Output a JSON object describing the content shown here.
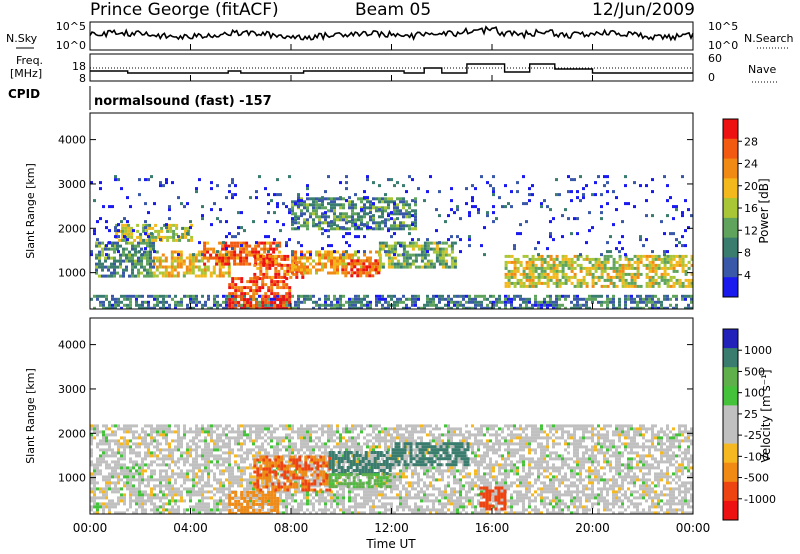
{
  "header": {
    "station": "Prince George (fitACF)",
    "beam": "Beam 05",
    "date": "12/Jun/2009"
  },
  "panels": {
    "nsky": {
      "left_label": "N.Sky",
      "right_label": "N.Search",
      "ticks_left": [
        "10^5",
        "10^0"
      ],
      "ticks_right": [
        "10^5",
        "10^0"
      ]
    },
    "freq": {
      "left_label_1": "Freq.",
      "left_label_2": "[MHz]",
      "right_label": "Nave",
      "ticks_left": [
        "18",
        "8"
      ],
      "ticks_right": [
        "60",
        "0"
      ]
    },
    "cpid": {
      "label": "CPID",
      "value": "normalsound (fast) -157"
    }
  },
  "colorbars": {
    "power": {
      "label": "Power [dB]",
      "ticks": [
        "28",
        "24",
        "20",
        "16",
        "12",
        "8",
        "4"
      ],
      "colors": [
        "#ee1111",
        "#f25a11",
        "#f08a14",
        "#f3b81c",
        "#a8c636",
        "#5fa35c",
        "#3a7d6f",
        "#3a58a8",
        "#1a1aee"
      ]
    },
    "velocity": {
      "label": "Velocity [m s⁻¹]",
      "ticks": [
        "1000",
        "500",
        "100",
        "25",
        "-25",
        "-100",
        "-500",
        "-1000"
      ],
      "colors": [
        "#2222bb",
        "#3a7d6f",
        "#5fb04a",
        "#44c33a",
        "#c0c0c0",
        "#c0c0c0",
        "#f5b820",
        "#f08a14",
        "#ee4411",
        "#ee1111"
      ]
    }
  },
  "chart_data": [
    {
      "type": "heatmap",
      "title": "Power",
      "ylabel": "Slant Range [km]",
      "xlabel": "Time UT",
      "x_ticks": [
        "00:00",
        "04:00",
        "08:00",
        "12:00",
        "16:00",
        "20:00",
        "00:00"
      ],
      "y_ticks": [
        "1000",
        "2000",
        "3000",
        "4000"
      ],
      "xlim_hours": [
        0,
        24
      ],
      "ylim_km": [
        180,
        4600
      ],
      "regions": [
        {
          "t0": 0.0,
          "t1": 24.0,
          "r0": 200,
          "r1": 500,
          "value": 10
        },
        {
          "t0": 0.2,
          "t1": 2.5,
          "r0": 900,
          "r1": 1700,
          "value": 12
        },
        {
          "t0": 1.0,
          "t1": 4.0,
          "r0": 1700,
          "r1": 2100,
          "value": 17
        },
        {
          "t0": 2.5,
          "t1": 5.5,
          "r0": 900,
          "r1": 1500,
          "value": 20
        },
        {
          "t0": 4.5,
          "t1": 7.5,
          "r0": 1200,
          "r1": 1700,
          "value": 26
        },
        {
          "t0": 5.5,
          "t1": 8.0,
          "r0": 200,
          "r1": 900,
          "value": 28
        },
        {
          "t0": 6.5,
          "t1": 8.5,
          "r0": 900,
          "r1": 1400,
          "value": 26
        },
        {
          "t0": 8.0,
          "t1": 11.5,
          "r0": 1000,
          "r1": 1500,
          "value": 22
        },
        {
          "t0": 10.0,
          "t1": 11.5,
          "r0": 900,
          "r1": 1300,
          "value": 27
        },
        {
          "t0": 11.5,
          "t1": 14.5,
          "r0": 1100,
          "r1": 1700,
          "value": 15
        },
        {
          "t0": 8.0,
          "t1": 13.0,
          "r0": 2000,
          "r1": 2700,
          "value": 12
        },
        {
          "t0": 16.5,
          "t1": 24.0,
          "r0": 700,
          "r1": 1400,
          "value": 18
        },
        {
          "t0": 0.0,
          "t1": 24.0,
          "r0": 1400,
          "r1": 3200,
          "value": 6
        }
      ]
    },
    {
      "type": "heatmap",
      "title": "Velocity",
      "ylabel": "Slant Range [km]",
      "xlabel": "Time UT",
      "x_ticks": [
        "00:00",
        "04:00",
        "08:00",
        "12:00",
        "16:00",
        "20:00",
        "00:00"
      ],
      "y_ticks": [
        "1000",
        "2000",
        "3000",
        "4000"
      ],
      "xlim_hours": [
        0,
        24
      ],
      "ylim_km": [
        180,
        4600
      ],
      "regions": [
        {
          "t0": 0.0,
          "t1": 24.0,
          "r0": 200,
          "r1": 2200,
          "value": 0
        },
        {
          "t0": 5.5,
          "t1": 7.5,
          "r0": 200,
          "r1": 700,
          "value": -150
        },
        {
          "t0": 6.5,
          "t1": 9.5,
          "r0": 700,
          "r1": 1500,
          "value": -300
        },
        {
          "t0": 9.5,
          "t1": 12.0,
          "r0": 1100,
          "r1": 1600,
          "value": 600
        },
        {
          "t0": 12.0,
          "t1": 15.0,
          "r0": 1300,
          "r1": 1800,
          "value": 400
        },
        {
          "t0": 9.5,
          "t1": 12.0,
          "r0": 800,
          "r1": 1100,
          "value": 80
        },
        {
          "t0": 15.5,
          "t1": 16.5,
          "r0": 300,
          "r1": 800,
          "value": -600
        }
      ]
    }
  ]
}
